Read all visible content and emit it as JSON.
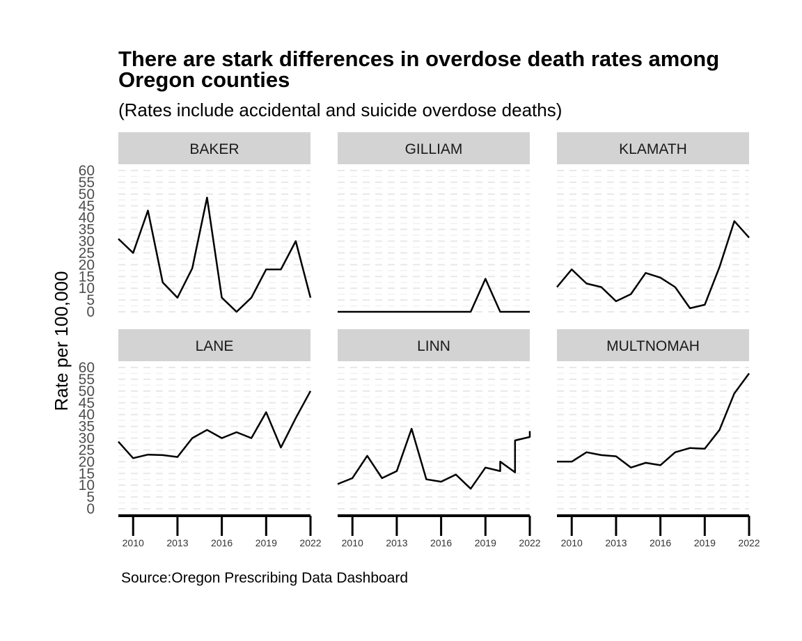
{
  "chart_data": {
    "type": "line",
    "title": "There are stark differences in overdose death rates among Oregon counties",
    "subtitle": "(Rates include accidental and suicide overdose deaths)",
    "ylabel": "Rate per 100,000",
    "xlabel": "",
    "caption": "Source:Oregon Prescribing Data Dashboard",
    "xlim": [
      2009,
      2022
    ],
    "ylim": [
      0,
      60
    ],
    "x_ticks": [
      2010,
      2013,
      2016,
      2019,
      2022
    ],
    "y_ticks": [
      0,
      5,
      10,
      15,
      20,
      25,
      30,
      35,
      40,
      45,
      50,
      55,
      60
    ],
    "grid": "horizontal dashed",
    "line_color": "#000000",
    "strip_color": "#d3d3d3",
    "panels": [
      {
        "name": "BAKER",
        "x": [
          2009,
          2010,
          2011,
          2012,
          2013,
          2014,
          2015,
          2016,
          2017,
          2018,
          2019,
          2020,
          2021,
          2022
        ],
        "y": [
          31,
          25,
          43,
          12.5,
          6,
          18.5,
          48.5,
          6,
          0,
          6,
          18,
          18,
          30,
          6
        ]
      },
      {
        "name": "GILLIAM",
        "x": [
          2009,
          2010,
          2011,
          2012,
          2013,
          2014,
          2015,
          2016,
          2017,
          2018,
          2019,
          2020,
          2021,
          2022
        ],
        "y": [
          0,
          0,
          0,
          0,
          0,
          0,
          0,
          0,
          0,
          0,
          14,
          0,
          0,
          0
        ]
      },
      {
        "name": "KLAMATH",
        "x": [
          2009,
          2010,
          2011,
          2012,
          2013,
          2014,
          2015,
          2016,
          2017,
          2018,
          2019,
          2020,
          2021,
          2022
        ],
        "y": [
          10.5,
          18,
          12,
          10.5,
          4.5,
          7.5,
          16.5,
          14.5,
          10.5,
          1.5,
          3,
          19,
          38.5,
          31.5
        ]
      },
      {
        "name": "LANE",
        "x": [
          2009,
          2010,
          2011,
          2012,
          2013,
          2014,
          2015,
          2016,
          2017,
          2018,
          2019,
          2020,
          2021,
          2022
        ],
        "y": [
          28.5,
          21.5,
          23,
          22.8,
          22,
          30,
          33.5,
          30,
          32.5,
          30,
          41,
          26,
          38.5,
          50
        ]
      },
      {
        "name": "LINN",
        "x": [
          2009,
          2010,
          2011,
          2012,
          2013,
          2014,
          2015,
          2016,
          2017,
          2018,
          2019,
          2020,
          2020,
          2021,
          2021,
          2022,
          2022
        ],
        "y": [
          10.5,
          13,
          22.5,
          13,
          16,
          34,
          12.5,
          11.5,
          14.5,
          8.5,
          17.5,
          16,
          20,
          15.5,
          29,
          30.5,
          33
        ]
      },
      {
        "name": "MULTNOMAH",
        "x": [
          2009,
          2010,
          2011,
          2012,
          2013,
          2014,
          2015,
          2016,
          2017,
          2018,
          2019,
          2020,
          2021,
          2022
        ],
        "y": [
          20,
          20,
          24,
          22.8,
          22.3,
          17.5,
          19.5,
          18.5,
          24,
          25.8,
          25.5,
          33.5,
          49,
          57.5
        ]
      }
    ]
  }
}
